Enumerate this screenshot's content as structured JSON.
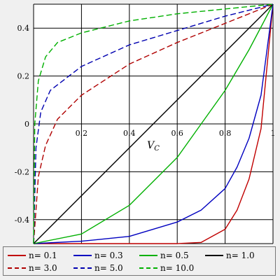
{
  "chart_data": {
    "type": "line",
    "xlabel": "Vc",
    "xlim": [
      0,
      1
    ],
    "ylim": [
      -0.5,
      0.5
    ],
    "x_ticks": [
      "0.2",
      "0.4",
      "0.6",
      "0.8",
      "1"
    ],
    "y_ticks": [
      "0.4",
      "0.2",
      "0",
      "-0.2",
      "-0.4"
    ],
    "grid": true,
    "legend_position": "bottom",
    "formula_family": "y = 0.5 * (2x - 1)^(1/n) approx. (curves through (0,-0.5) and (1,0.5))",
    "series": [
      {
        "name": "n= 0.1",
        "n": 0.1,
        "color": "#c00000",
        "dash": "solid",
        "x": [
          0,
          0.2,
          0.4,
          0.6,
          0.7,
          0.8,
          0.85,
          0.9,
          0.95,
          1.0
        ],
        "y": [
          -0.5,
          -0.5,
          -0.5,
          -0.5,
          -0.495,
          -0.44,
          -0.36,
          -0.23,
          -0.02,
          0.5
        ]
      },
      {
        "name": "n= 0.3",
        "n": 0.3,
        "color": "#0000c0",
        "dash": "solid",
        "x": [
          0,
          0.2,
          0.4,
          0.6,
          0.7,
          0.8,
          0.85,
          0.9,
          0.95,
          1.0
        ],
        "y": [
          -0.5,
          -0.49,
          -0.47,
          -0.41,
          -0.36,
          -0.27,
          -0.18,
          -0.06,
          0.12,
          0.5
        ]
      },
      {
        "name": "n= 0.5",
        "n": 0.5,
        "color": "#00b000",
        "dash": "solid",
        "x": [
          0,
          0.2,
          0.4,
          0.6,
          0.7,
          0.8,
          0.9,
          1.0
        ],
        "y": [
          -0.5,
          -0.46,
          -0.34,
          -0.14,
          0.0,
          0.14,
          0.31,
          0.5
        ]
      },
      {
        "name": "n= 1.0",
        "n": 1.0,
        "color": "#000000",
        "dash": "solid",
        "x": [
          0,
          1
        ],
        "y": [
          -0.5,
          0.5
        ]
      },
      {
        "name": "n= 3.0",
        "n": 3.0,
        "color": "#b00000",
        "dash": "dashed",
        "x": [
          0,
          0.02,
          0.05,
          0.1,
          0.2,
          0.4,
          0.6,
          0.8,
          1.0
        ],
        "y": [
          -0.5,
          -0.22,
          -0.09,
          0.02,
          0.12,
          0.25,
          0.34,
          0.42,
          0.5
        ]
      },
      {
        "name": "n= 5.0",
        "n": 5.0,
        "color": "#0000b0",
        "dash": "dashed",
        "x": [
          0,
          0.01,
          0.03,
          0.07,
          0.2,
          0.4,
          0.6,
          0.8,
          1.0
        ],
        "y": [
          -0.5,
          -0.1,
          0.05,
          0.14,
          0.24,
          0.33,
          0.39,
          0.45,
          0.5
        ]
      },
      {
        "name": "n= 10.0",
        "n": 10.0,
        "color": "#00b000",
        "dash": "dashed",
        "x": [
          0,
          0.005,
          0.02,
          0.05,
          0.1,
          0.2,
          0.4,
          0.6,
          0.8,
          1.0
        ],
        "y": [
          -0.5,
          0.0,
          0.18,
          0.28,
          0.34,
          0.38,
          0.43,
          0.46,
          0.48,
          0.5
        ]
      }
    ]
  },
  "legend": {
    "items": [
      {
        "label": "n= 0.1",
        "color": "#c00000",
        "dash": "solid"
      },
      {
        "label": "n= 0.3",
        "color": "#0000c0",
        "dash": "solid"
      },
      {
        "label": "n= 0.5",
        "color": "#00b000",
        "dash": "solid"
      },
      {
        "label": "n= 1.0",
        "color": "#000000",
        "dash": "solid"
      },
      {
        "label": "n= 3.0",
        "color": "#b00000",
        "dash": "dashed"
      },
      {
        "label": "n= 5.0",
        "color": "#0000b0",
        "dash": "dashed"
      },
      {
        "label": "n= 10.0",
        "color": "#00b000",
        "dash": "dashed"
      }
    ]
  }
}
